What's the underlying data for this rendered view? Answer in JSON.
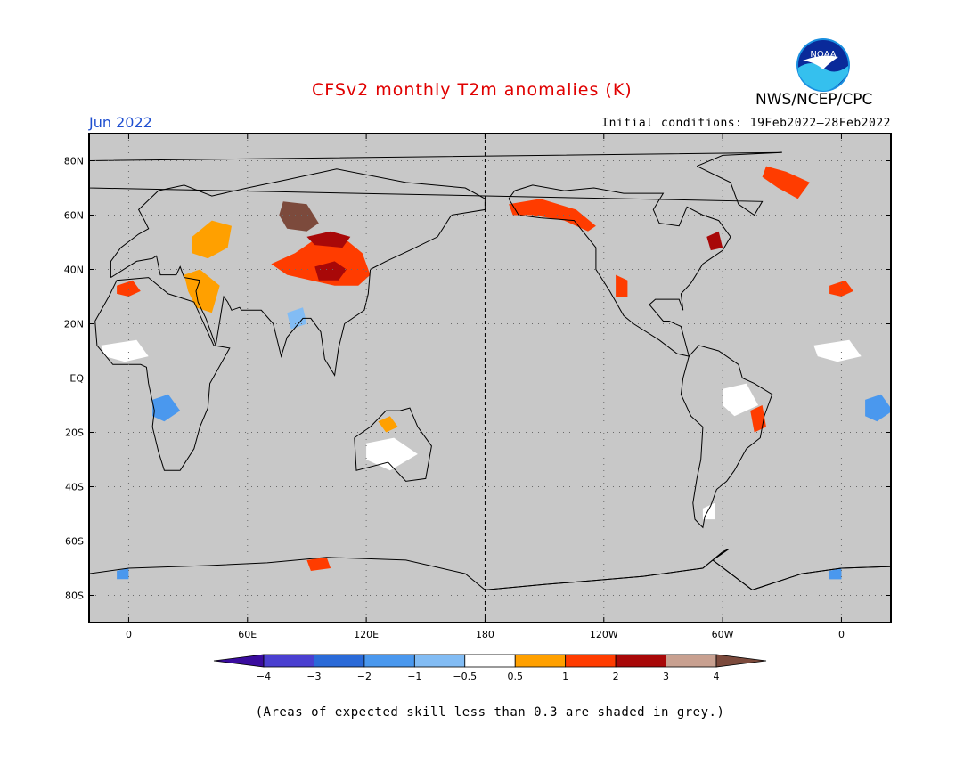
{
  "title": "CFSv2 monthly T2m anomalies (K)",
  "valid_month": "Jun 2022",
  "initial_conditions": "Initial conditions: 19Feb2022–28Feb2022",
  "agency": "NWS/NCEP/CPC",
  "logo_text": "NOAA",
  "footnote": "(Areas of expected skill less than 0.3 are shaded in grey.)",
  "colors": {
    "skill_grey": "#c8c8c8",
    "coast": "#000000",
    "title_red": "#e00000",
    "month_blue": "#1f4fd0"
  },
  "map": {
    "lat_labels": [
      {
        "lat": 80,
        "label": "80N"
      },
      {
        "lat": 60,
        "label": "60N"
      },
      {
        "lat": 40,
        "label": "40N"
      },
      {
        "lat": 20,
        "label": "20N"
      },
      {
        "lat": 0,
        "label": "EQ"
      },
      {
        "lat": -20,
        "label": "20S"
      },
      {
        "lat": -40,
        "label": "40S"
      },
      {
        "lat": -60,
        "label": "60S"
      },
      {
        "lat": -80,
        "label": "80S"
      }
    ],
    "lon_labels": [
      {
        "lon": 0,
        "label": "0"
      },
      {
        "lon": 60,
        "label": "60E"
      },
      {
        "lon": 120,
        "label": "120E"
      },
      {
        "lon": 180,
        "label": "180"
      },
      {
        "lon": 240,
        "label": "120W"
      },
      {
        "lon": 300,
        "label": "60W"
      },
      {
        "lon": 360,
        "label": "0"
      }
    ],
    "lon_range": [
      -20,
      385
    ],
    "lat_range": [
      -90,
      90
    ],
    "grid": true
  },
  "legend": {
    "colors": [
      "#3a0c9e",
      "#4a3fd0",
      "#2a6ad8",
      "#4a98ee",
      "#82bcf4",
      "#ffffff",
      "#ffa000",
      "#ff3c00",
      "#a80808",
      "#c8a090",
      "#7c4a3c"
    ],
    "ticks": [
      "−4",
      "−3",
      "−2",
      "−1",
      "−0.5",
      "0.5",
      "1",
      "2",
      "3",
      "4"
    ]
  },
  "anomaly_regions": [
    {
      "name": "central-asia-west-siberia",
      "color": "#7c4a3c",
      "points": [
        [
          78,
          65
        ],
        [
          90,
          64
        ],
        [
          96,
          57
        ],
        [
          90,
          54
        ],
        [
          80,
          55
        ],
        [
          76,
          60
        ]
      ]
    },
    {
      "name": "mongolia-north-china-warm",
      "color": "#ff3c00",
      "points": [
        [
          72,
          42
        ],
        [
          84,
          46
        ],
        [
          96,
          52
        ],
        [
          108,
          52
        ],
        [
          118,
          46
        ],
        [
          122,
          38
        ],
        [
          116,
          34
        ],
        [
          104,
          34
        ],
        [
          92,
          36
        ],
        [
          80,
          38
        ]
      ]
    },
    {
      "name": "north-china-core",
      "color": "#a80808",
      "points": [
        [
          94,
          41
        ],
        [
          104,
          43
        ],
        [
          110,
          40
        ],
        [
          106,
          36
        ],
        [
          96,
          36
        ]
      ]
    },
    {
      "name": "inner-asia-belt",
      "color": "#a80808",
      "points": [
        [
          90,
          52
        ],
        [
          102,
          54
        ],
        [
          112,
          52
        ],
        [
          108,
          48
        ],
        [
          94,
          49
        ]
      ]
    },
    {
      "name": "east-europe-russia",
      "color": "#ffa000",
      "points": [
        [
          32,
          52
        ],
        [
          42,
          58
        ],
        [
          52,
          56
        ],
        [
          50,
          48
        ],
        [
          40,
          44
        ],
        [
          32,
          46
        ]
      ]
    },
    {
      "name": "middle-east",
      "color": "#ffa000",
      "points": [
        [
          28,
          38
        ],
        [
          36,
          40
        ],
        [
          46,
          34
        ],
        [
          42,
          24
        ],
        [
          34,
          26
        ],
        [
          30,
          32
        ]
      ]
    },
    {
      "name": "northwest-africa",
      "color": "#ff3c00",
      "points": [
        [
          -6,
          34
        ],
        [
          2,
          36
        ],
        [
          6,
          32
        ],
        [
          0,
          30
        ],
        [
          -6,
          31
        ]
      ]
    },
    {
      "name": "alaska-canada",
      "color": "#ff3c00",
      "points": [
        [
          192,
          64
        ],
        [
          208,
          66
        ],
        [
          226,
          62
        ],
        [
          236,
          56
        ],
        [
          232,
          54
        ],
        [
          220,
          58
        ],
        [
          204,
          60
        ],
        [
          194,
          60
        ]
      ]
    },
    {
      "name": "greenland",
      "color": "#ff3c00",
      "points": [
        [
          322,
          78
        ],
        [
          332,
          76
        ],
        [
          344,
          72
        ],
        [
          338,
          66
        ],
        [
          328,
          70
        ],
        [
          320,
          74
        ]
      ]
    },
    {
      "name": "hudson-east-canada",
      "color": "#a80808",
      "points": [
        [
          292,
          52
        ],
        [
          298,
          54
        ],
        [
          300,
          48
        ],
        [
          294,
          47
        ]
      ]
    },
    {
      "name": "western-us-mexico",
      "color": "#ff3c00",
      "points": [
        [
          246,
          38
        ],
        [
          252,
          36
        ],
        [
          252,
          30
        ],
        [
          246,
          30
        ]
      ]
    },
    {
      "name": "north-australia",
      "color": "#ffa000",
      "points": [
        [
          126,
          -16
        ],
        [
          132,
          -14
        ],
        [
          136,
          -18
        ],
        [
          130,
          -20
        ]
      ]
    },
    {
      "name": "brazil-east",
      "color": "#ff3c00",
      "points": [
        [
          314,
          -12
        ],
        [
          320,
          -10
        ],
        [
          322,
          -18
        ],
        [
          316,
          -20
        ]
      ]
    },
    {
      "name": "antarctica-east",
      "color": "#ff3c00",
      "points": [
        [
          90,
          -67
        ],
        [
          100,
          -66
        ],
        [
          102,
          -70
        ],
        [
          92,
          -71
        ]
      ]
    },
    {
      "name": "central-africa-cool",
      "color": "#4a98ee",
      "points": [
        [
          12,
          -8
        ],
        [
          20,
          -6
        ],
        [
          26,
          -12
        ],
        [
          18,
          -16
        ],
        [
          12,
          -14
        ]
      ]
    },
    {
      "name": "south-asia-cool",
      "color": "#82bcf4",
      "points": [
        [
          80,
          24
        ],
        [
          88,
          26
        ],
        [
          90,
          20
        ],
        [
          82,
          18
        ]
      ]
    },
    {
      "name": "central-africa-near-normal",
      "color": "#ffffff",
      "points": [
        [
          -14,
          12
        ],
        [
          4,
          14
        ],
        [
          10,
          8
        ],
        [
          -2,
          6
        ],
        [
          -12,
          8
        ]
      ]
    },
    {
      "name": "australia-near-normal",
      "color": "#ffffff",
      "points": [
        [
          120,
          -24
        ],
        [
          134,
          -22
        ],
        [
          146,
          -28
        ],
        [
          132,
          -34
        ],
        [
          120,
          -30
        ]
      ]
    },
    {
      "name": "amazon-near-normal",
      "color": "#ffffff",
      "points": [
        [
          300,
          -4
        ],
        [
          312,
          -2
        ],
        [
          318,
          -10
        ],
        [
          306,
          -14
        ],
        [
          300,
          -10
        ]
      ]
    },
    {
      "name": "patagonia-near-normal",
      "color": "#ffffff",
      "points": [
        [
          290,
          -48
        ],
        [
          296,
          -46
        ],
        [
          296,
          -52
        ],
        [
          290,
          -52
        ]
      ]
    },
    {
      "name": "antarctica-cool",
      "color": "#4a98ee",
      "points": [
        [
          -6,
          -71
        ],
        [
          0,
          -70
        ],
        [
          0,
          -74
        ],
        [
          -6,
          -74
        ]
      ]
    },
    {
      "name": "antarctica-cool-right",
      "color": "#4a98ee",
      "points": [
        [
          354,
          -71
        ],
        [
          360,
          -70
        ],
        [
          360,
          -74
        ],
        [
          354,
          -74
        ]
      ]
    }
  ],
  "coastlines": [
    {
      "name": "africa",
      "points": [
        [
          -17,
          21
        ],
        [
          -16,
          12
        ],
        [
          -8,
          5
        ],
        [
          6,
          5
        ],
        [
          9,
          4
        ],
        [
          10,
          -2
        ],
        [
          13,
          -12
        ],
        [
          12,
          -18
        ],
        [
          15,
          -27
        ],
        [
          18,
          -34
        ],
        [
          26,
          -34
        ],
        [
          33,
          -26
        ],
        [
          36,
          -18
        ],
        [
          40,
          -11
        ],
        [
          41,
          -2
        ],
        [
          51,
          11
        ],
        [
          43,
          12
        ],
        [
          33,
          28
        ],
        [
          20,
          31
        ],
        [
          10,
          37
        ],
        [
          -6,
          36
        ],
        [
          -10,
          30
        ],
        [
          -17,
          21
        ]
      ]
    },
    {
      "name": "eurasia",
      "points": [
        [
          -9,
          37
        ],
        [
          -9,
          43
        ],
        [
          -4,
          48
        ],
        [
          5,
          53
        ],
        [
          10,
          55
        ],
        [
          8,
          58
        ],
        [
          5,
          62
        ],
        [
          15,
          69
        ],
        [
          28,
          71
        ],
        [
          42,
          67
        ],
        [
          60,
          70
        ],
        [
          80,
          73
        ],
        [
          105,
          77
        ],
        [
          140,
          72
        ],
        [
          170,
          70
        ],
        [
          180,
          66
        ],
        [
          180,
          62
        ],
        [
          163,
          60
        ],
        [
          156,
          52
        ],
        [
          142,
          47
        ],
        [
          130,
          43
        ],
        [
          122,
          40
        ],
        [
          121,
          31
        ],
        [
          119,
          25
        ],
        [
          109,
          20
        ],
        [
          106,
          11
        ],
        [
          104,
          1
        ],
        [
          99,
          7
        ],
        [
          97,
          17
        ],
        [
          92,
          22
        ],
        [
          88,
          22
        ],
        [
          80,
          15
        ],
        [
          77,
          8
        ],
        [
          73,
          20
        ],
        [
          67,
          25
        ],
        [
          57,
          25
        ],
        [
          56,
          26
        ],
        [
          52,
          25
        ],
        [
          50,
          28
        ],
        [
          48,
          30
        ],
        [
          44,
          12
        ],
        [
          39,
          22
        ],
        [
          35,
          28
        ],
        [
          34,
          32
        ],
        [
          36,
          36
        ],
        [
          28,
          37
        ],
        [
          26,
          41
        ],
        [
          24,
          38
        ],
        [
          16,
          38
        ],
        [
          14,
          45
        ],
        [
          12,
          44
        ],
        [
          4,
          43
        ],
        [
          -9,
          37
        ]
      ]
    },
    {
      "name": "north-america",
      "points": [
        [
          -168,
          66
        ],
        [
          -163,
          60
        ],
        [
          -152,
          59
        ],
        [
          -135,
          58
        ],
        [
          -124,
          48
        ],
        [
          -124,
          40
        ],
        [
          -117,
          32
        ],
        [
          -110,
          23
        ],
        [
          -105,
          20
        ],
        [
          -92,
          14
        ],
        [
          -83,
          9
        ],
        [
          -77,
          8
        ],
        [
          -81,
          19
        ],
        [
          -87,
          21
        ],
        [
          -90,
          21
        ],
        [
          -97,
          27
        ],
        [
          -94,
          29
        ],
        [
          -82,
          29
        ],
        [
          -80,
          25
        ],
        [
          -81,
          31
        ],
        [
          -76,
          35
        ],
        [
          -70,
          42
        ],
        [
          -66,
          44
        ],
        [
          -60,
          47
        ],
        [
          -56,
          52
        ],
        [
          -62,
          58
        ],
        [
          -70,
          60
        ],
        [
          -78,
          63
        ],
        [
          -82,
          56
        ],
        [
          -92,
          57
        ],
        [
          -95,
          62
        ],
        [
          -90,
          68
        ],
        [
          -110,
          68
        ],
        [
          -125,
          70
        ],
        [
          -140,
          69
        ],
        [
          -156,
          71
        ],
        [
          -165,
          69
        ],
        [
          -168,
          66
        ]
      ]
    },
    {
      "name": "south-america",
      "points": [
        [
          -77,
          8
        ],
        [
          -72,
          12
        ],
        [
          -62,
          10
        ],
        [
          -52,
          5
        ],
        [
          -50,
          0
        ],
        [
          -44,
          -2
        ],
        [
          -35,
          -6
        ],
        [
          -39,
          -14
        ],
        [
          -41,
          -22
        ],
        [
          -48,
          -26
        ],
        [
          -54,
          -34
        ],
        [
          -58,
          -38
        ],
        [
          -63,
          -41
        ],
        [
          -66,
          -47
        ],
        [
          -69,
          -51
        ],
        [
          -70,
          -55
        ],
        [
          -74,
          -52
        ],
        [
          -75,
          -46
        ],
        [
          -73,
          -37
        ],
        [
          -71,
          -30
        ],
        [
          -70,
          -18
        ],
        [
          -76,
          -14
        ],
        [
          -81,
          -6
        ],
        [
          -80,
          0
        ],
        [
          -77,
          8
        ]
      ]
    },
    {
      "name": "australia",
      "points": [
        [
          114,
          -22
        ],
        [
          122,
          -18
        ],
        [
          130,
          -12
        ],
        [
          137,
          -12
        ],
        [
          142,
          -11
        ],
        [
          146,
          -18
        ],
        [
          153,
          -25
        ],
        [
          150,
          -37
        ],
        [
          140,
          -38
        ],
        [
          131,
          -31
        ],
        [
          115,
          -34
        ],
        [
          114,
          -22
        ]
      ]
    },
    {
      "name": "greenland",
      "points": [
        [
          -73,
          78
        ],
        [
          -60,
          82
        ],
        [
          -30,
          83
        ],
        [
          -20,
          80
        ],
        [
          -20,
          70
        ],
        [
          -40,
          65
        ],
        [
          -44,
          60
        ],
        [
          -52,
          64
        ],
        [
          -56,
          72
        ],
        [
          -73,
          78
        ]
      ]
    },
    {
      "name": "antarctica",
      "points": [
        [
          -180,
          -78
        ],
        [
          -150,
          -76
        ],
        [
          -100,
          -73
        ],
        [
          -70,
          -70
        ],
        [
          -60,
          -64
        ],
        [
          -57,
          -63
        ],
        [
          -65,
          -67
        ],
        [
          -45,
          -78
        ],
        [
          -20,
          -72
        ],
        [
          0,
          -70
        ],
        [
          40,
          -69
        ],
        [
          70,
          -68
        ],
        [
          100,
          -66
        ],
        [
          140,
          -67
        ],
        [
          170,
          -72
        ],
        [
          180,
          -78
        ]
      ]
    }
  ]
}
